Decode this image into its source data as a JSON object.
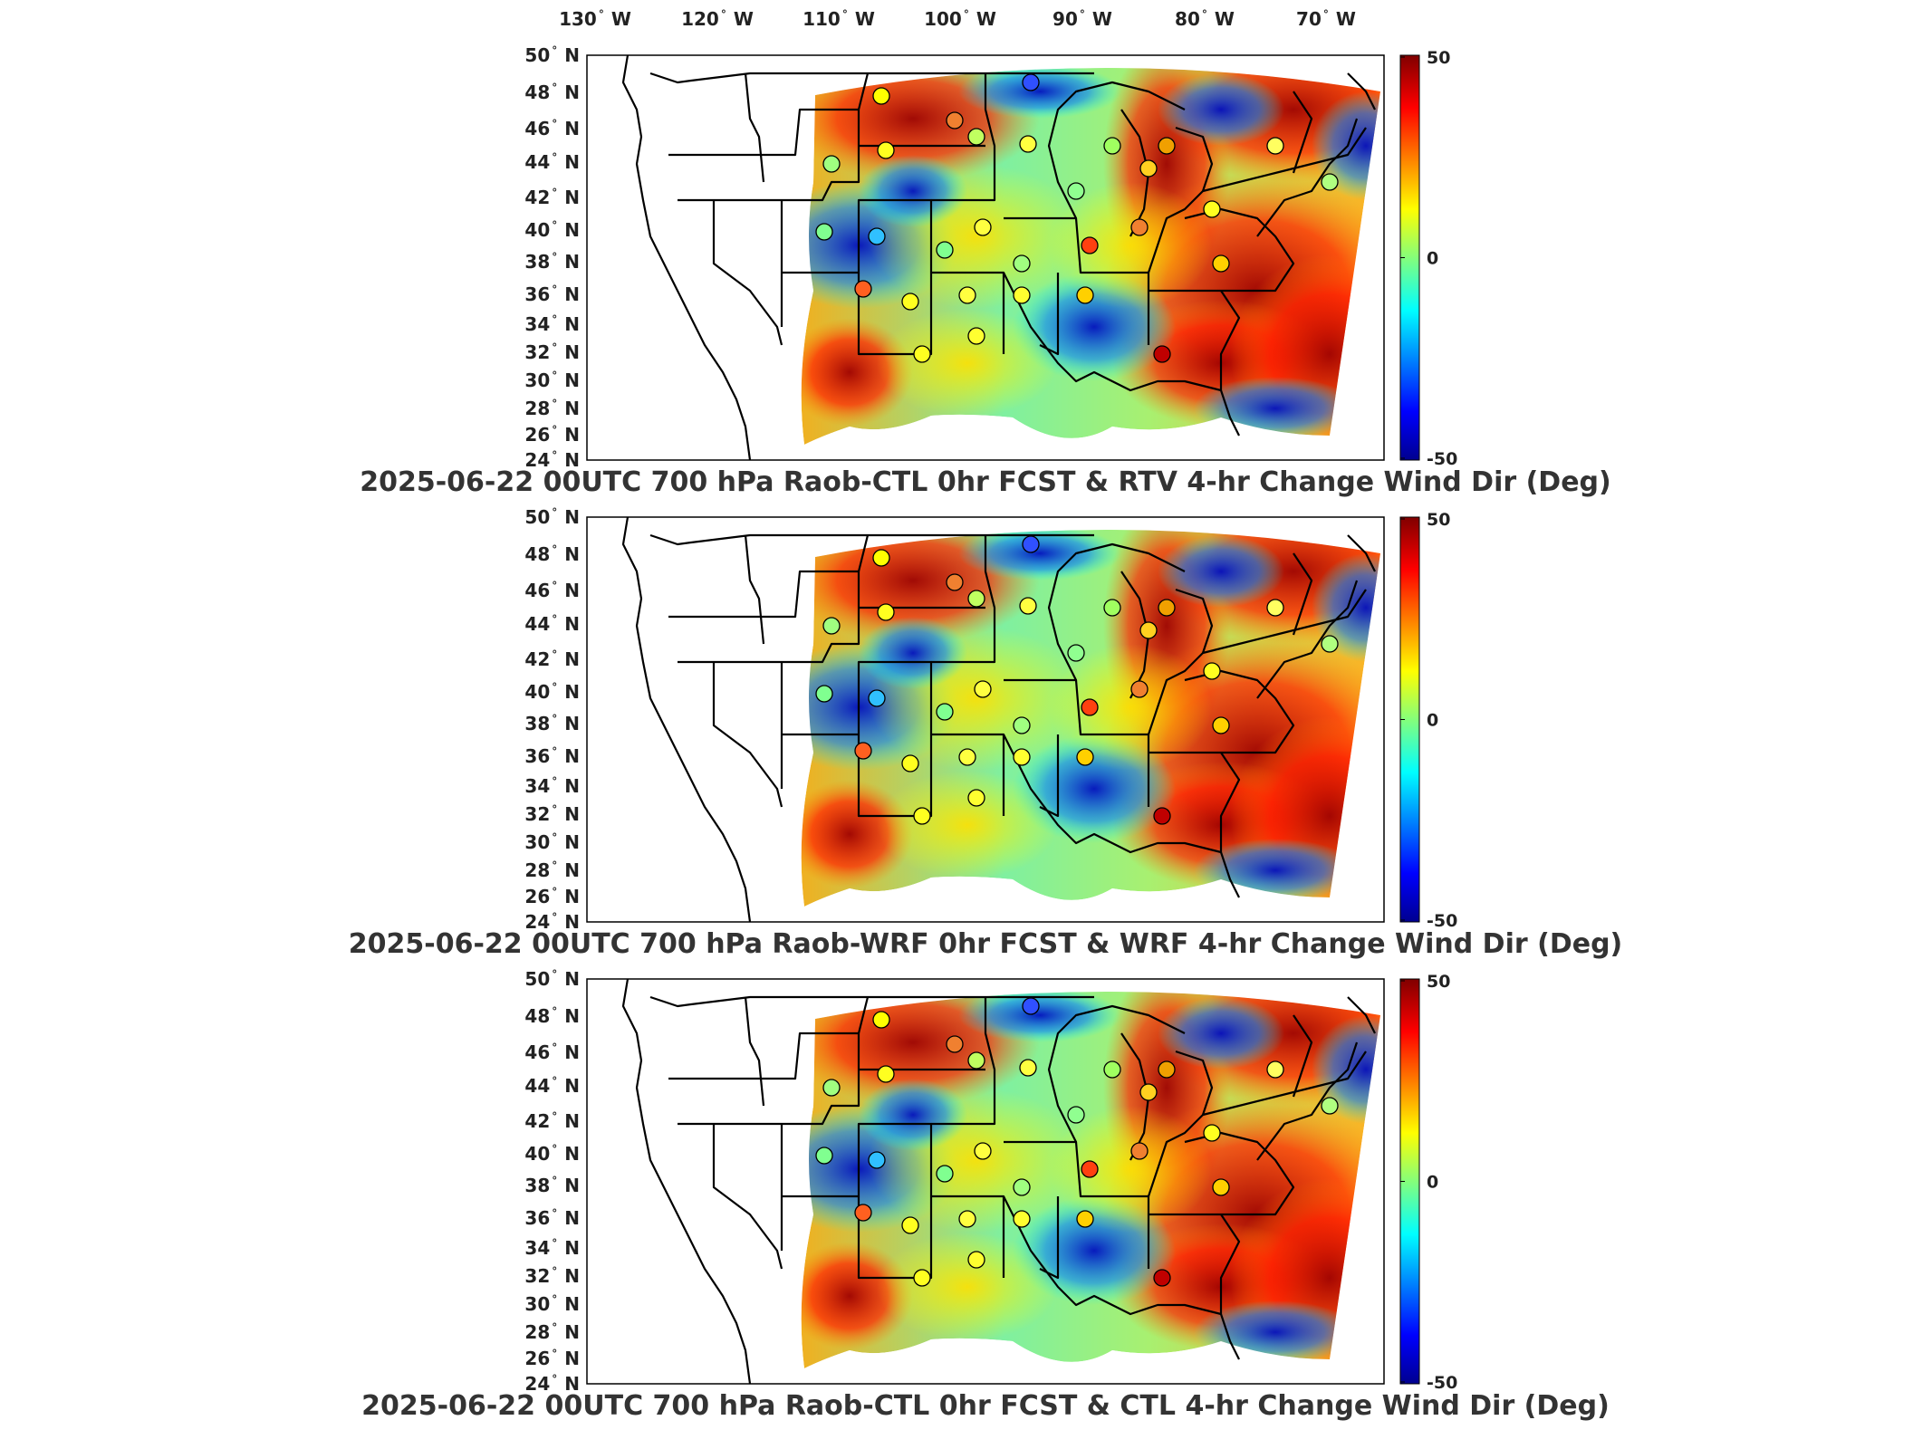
{
  "lon_labels": [
    {
      "deg": "130",
      "hemi": "W"
    },
    {
      "deg": "120",
      "hemi": "W"
    },
    {
      "deg": "110",
      "hemi": "W"
    },
    {
      "deg": "100",
      "hemi": "W"
    },
    {
      "deg": "90",
      "hemi": "W"
    },
    {
      "deg": "80",
      "hemi": "W"
    },
    {
      "deg": "70",
      "hemi": "W"
    }
  ],
  "lat_labels": [
    {
      "deg": "50",
      "hemi": "N"
    },
    {
      "deg": "48",
      "hemi": "N"
    },
    {
      "deg": "46",
      "hemi": "N"
    },
    {
      "deg": "44",
      "hemi": "N"
    },
    {
      "deg": "42",
      "hemi": "N"
    },
    {
      "deg": "40",
      "hemi": "N"
    },
    {
      "deg": "38",
      "hemi": "N"
    },
    {
      "deg": "36",
      "hemi": "N"
    },
    {
      "deg": "34",
      "hemi": "N"
    },
    {
      "deg": "32",
      "hemi": "N"
    },
    {
      "deg": "30",
      "hemi": "N"
    },
    {
      "deg": "28",
      "hemi": "N"
    },
    {
      "deg": "26",
      "hemi": "N"
    },
    {
      "deg": "24",
      "hemi": "N"
    }
  ],
  "colorbar": {
    "ticks": [
      "50",
      "0",
      "-50"
    ],
    "range": [
      -50,
      50
    ],
    "colormap": "jet",
    "colors": [
      "#00008f",
      "#0000ff",
      "#00ffff",
      "#ffff00",
      "#ff0000",
      "#800000"
    ]
  },
  "panels": [
    {
      "id": "p1",
      "title": "2025-06-22 00UTC 700 hPa Raob-CTL 0hr FCST & RTV 4-hr Change Wind Dir (Deg)"
    },
    {
      "id": "p2",
      "title": "2025-06-22 00UTC 700 hPa Raob-WRF 0hr FCST & WRF 4-hr Change Wind Dir (Deg)"
    },
    {
      "id": "p3",
      "title": "2025-06-22 00UTC 700 hPa Raob-CTL 0hr FCST & CTL 4-hr Change Wind Dir (Deg)"
    }
  ]
}
